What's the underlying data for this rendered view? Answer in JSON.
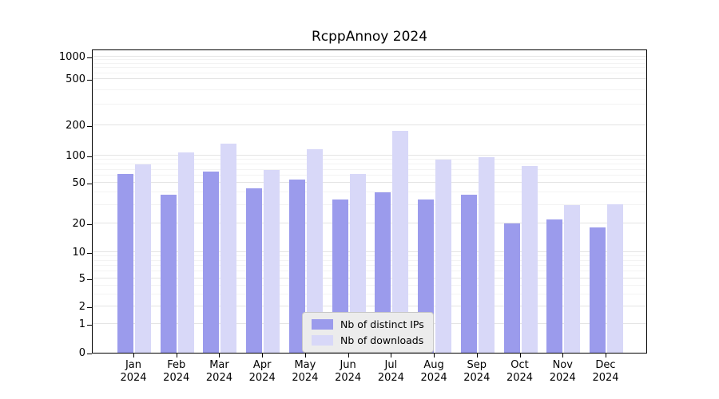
{
  "chart_data": {
    "type": "bar",
    "title": "RcppAnnoy 2024",
    "categories": [
      "Jan 2024",
      "Feb 2024",
      "Mar 2024",
      "Apr 2024",
      "May 2024",
      "Jun 2024",
      "Jul 2024",
      "Aug 2024",
      "Sep 2024",
      "Oct 2024",
      "Nov 2024",
      "Dec 2024"
    ],
    "series": [
      {
        "name": "Nb of distinct IPs",
        "color": "#9b9bec",
        "values": [
          62,
          38,
          66,
          44,
          54,
          34,
          40,
          34,
          38,
          20,
          22,
          18
        ]
      },
      {
        "name": "Nb of downloads",
        "color": "#d8d8f8",
        "values": [
          80,
          107,
          132,
          70,
          115,
          63,
          175,
          90,
          96,
          76,
          30,
          31
        ]
      }
    ],
    "y_ticks": [
      0,
      1,
      2,
      5,
      10,
      20,
      50,
      100,
      200,
      500,
      1000
    ],
    "y_scale": "log (symlog, 0 at baseline)",
    "ylim": [
      0,
      1000
    ],
    "xlabel": "",
    "ylabel": "",
    "grid": "horizontal major and minor gridlines",
    "legend_position": "lower center"
  },
  "colors": {
    "bar_distinct_ips": "#9b9bec",
    "bar_downloads": "#d8d8f8",
    "grid_major": "#e4e4e4",
    "grid_minor": "#f3f3f3",
    "axis": "#000000",
    "legend_bg": "#ececec",
    "legend_border": "#c8c8c8"
  }
}
